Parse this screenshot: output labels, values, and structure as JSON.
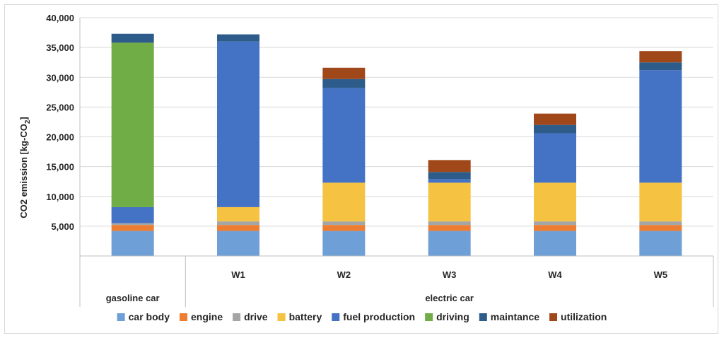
{
  "chart_data": {
    "type": "bar",
    "stacked": true,
    "ylabel": "CO2 emission [kg-CO",
    "ylabel_subscript": "2",
    "ylabel_suffix": "]",
    "ylim": [
      0,
      40000
    ],
    "yticks": [
      "5,000",
      "10,000",
      "15,000",
      "20,000",
      "25,000",
      "30,000",
      "35,000",
      "40,000"
    ],
    "ytick_values": [
      5000,
      10000,
      15000,
      20000,
      25000,
      30000,
      35000,
      40000
    ],
    "categories": [
      "",
      "W1",
      "W2",
      "W3",
      "W4",
      "W5"
    ],
    "groups": [
      {
        "label": "gasoline car",
        "span": [
          0,
          0
        ]
      },
      {
        "label": "electric car",
        "span": [
          1,
          5
        ]
      }
    ],
    "legend_position": "bottom",
    "gridlines": true,
    "series": [
      {
        "name": "car body",
        "color": "#6e9fd6",
        "values": [
          4200,
          4200,
          4200,
          4200,
          4200,
          4200
        ]
      },
      {
        "name": "engine",
        "color": "#ed7d31",
        "values": [
          1000,
          1000,
          1000,
          1000,
          1000,
          1000
        ]
      },
      {
        "name": "drive",
        "color": "#a5a5a5",
        "values": [
          300,
          600,
          600,
          600,
          600,
          600
        ]
      },
      {
        "name": "battery",
        "color": "#f5c242",
        "values": [
          0,
          2400,
          6500,
          6500,
          6500,
          6500
        ]
      },
      {
        "name": "fuel production",
        "color": "#4472c4",
        "values": [
          2700,
          27800,
          15900,
          600,
          8300,
          18900
        ]
      },
      {
        "name": "driving",
        "color": "#70ad47",
        "values": [
          27600,
          0,
          0,
          0,
          0,
          0
        ]
      },
      {
        "name": "maintance",
        "color": "#2e5c8a",
        "values": [
          1500,
          1200,
          1500,
          1200,
          1400,
          1300
        ]
      },
      {
        "name": "utilization",
        "color": "#a0481a",
        "values": [
          0,
          0,
          1900,
          2000,
          1900,
          1900
        ]
      }
    ]
  }
}
